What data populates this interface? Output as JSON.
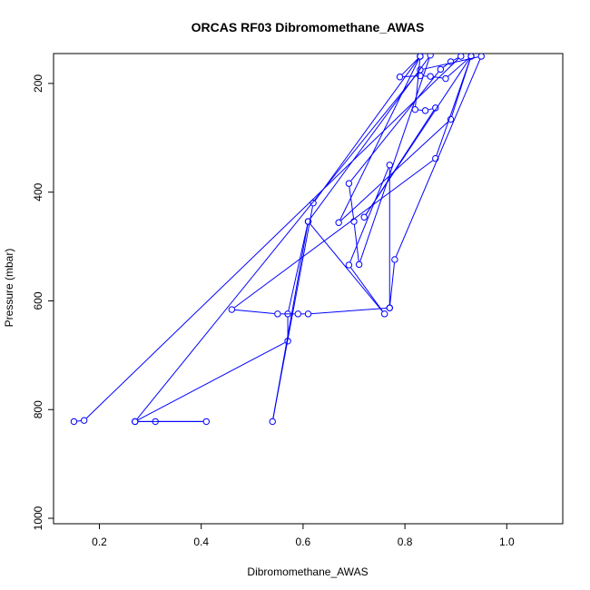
{
  "chart_data": {
    "type": "line",
    "title": "ORCAS RF03 Dibromomethane_AWAS",
    "xlabel": "Dibromomethane_AWAS",
    "ylabel": "Pressure (mbar)",
    "xlim": [
      0.11,
      1.11
    ],
    "ylim": [
      1010,
      145
    ],
    "y_reversed": true,
    "x_ticks": [
      0.2,
      0.4,
      0.6,
      0.8,
      1.0
    ],
    "x_tick_labels": [
      "0.2",
      "0.4",
      "0.6",
      "0.8",
      "1.0"
    ],
    "y_ticks": [
      200,
      400,
      600,
      800,
      1000
    ],
    "y_tick_labels": [
      "200",
      "400",
      "600",
      "800",
      "1000"
    ],
    "grid": false,
    "series": [
      {
        "color": "#0000ff",
        "marker": "open-circle",
        "points": [
          {
            "x": 0.15,
            "y": 822
          },
          {
            "x": 0.17,
            "y": 820
          },
          {
            "x": 0.91,
            "y": 150
          },
          {
            "x": 0.89,
            "y": 160
          },
          {
            "x": 0.87,
            "y": 174
          },
          {
            "x": 0.69,
            "y": 384
          },
          {
            "x": 0.7,
            "y": 454
          },
          {
            "x": 0.71,
            "y": 533
          },
          {
            "x": 0.85,
            "y": 148
          },
          {
            "x": 0.61,
            "y": 454
          },
          {
            "x": 0.54,
            "y": 822
          },
          {
            "x": 0.62,
            "y": 420
          },
          {
            "x": 0.83,
            "y": 150
          },
          {
            "x": 0.79,
            "y": 188
          },
          {
            "x": 0.83,
            "y": 186
          },
          {
            "x": 0.85,
            "y": 187
          },
          {
            "x": 0.88,
            "y": 191
          },
          {
            "x": 0.93,
            "y": 150
          },
          {
            "x": 0.89,
            "y": 266
          },
          {
            "x": 0.67,
            "y": 456
          },
          {
            "x": 0.83,
            "y": 150
          },
          {
            "x": 0.82,
            "y": 248
          },
          {
            "x": 0.84,
            "y": 250
          },
          {
            "x": 0.86,
            "y": 245
          },
          {
            "x": 0.72,
            "y": 446
          },
          {
            "x": 0.93,
            "y": 150
          },
          {
            "x": 0.86,
            "y": 338
          },
          {
            "x": 0.46,
            "y": 616
          },
          {
            "x": 0.55,
            "y": 624
          },
          {
            "x": 0.59,
            "y": 624
          },
          {
            "x": 0.61,
            "y": 624
          },
          {
            "x": 0.77,
            "y": 613
          },
          {
            "x": 0.77,
            "y": 350
          },
          {
            "x": 0.69,
            "y": 534
          },
          {
            "x": 0.76,
            "y": 624
          },
          {
            "x": 0.61,
            "y": 454
          },
          {
            "x": 0.57,
            "y": 624
          },
          {
            "x": 0.57,
            "y": 674
          },
          {
            "x": 0.27,
            "y": 822
          },
          {
            "x": 0.31,
            "y": 822
          },
          {
            "x": 0.41,
            "y": 822
          },
          {
            "x": 0.27,
            "y": 822
          },
          {
            "x": 0.83,
            "y": 175
          },
          {
            "x": 0.95,
            "y": 150
          },
          {
            "x": 0.78,
            "y": 524
          },
          {
            "x": 0.77,
            "y": 613
          }
        ]
      }
    ]
  }
}
